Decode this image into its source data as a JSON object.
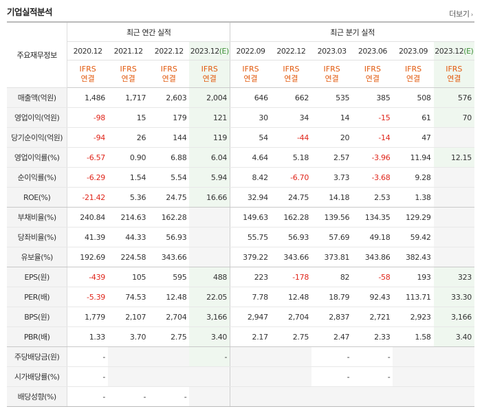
{
  "title": "기업실적분석",
  "more_label": "더보기",
  "header": {
    "row_label": "주요재무정보",
    "annual_group": "최근 연간 실적",
    "quarterly_group": "최근 분기 실적",
    "annual_periods": [
      {
        "label": "2020.12",
        "est": ""
      },
      {
        "label": "2021.12",
        "est": ""
      },
      {
        "label": "2022.12",
        "est": ""
      },
      {
        "label": "2023.12",
        "est": "(E)"
      }
    ],
    "quarterly_periods": [
      {
        "label": "2022.09",
        "est": ""
      },
      {
        "label": "2022.12",
        "est": ""
      },
      {
        "label": "2023.03",
        "est": ""
      },
      {
        "label": "2023.06",
        "est": ""
      },
      {
        "label": "2023.09",
        "est": ""
      },
      {
        "label": "2023.12",
        "est": "(E)"
      }
    ],
    "ifrs_line1": "IFRS",
    "ifrs_line2": "연결"
  },
  "rows": [
    {
      "label": "매출액(억원)",
      "values": [
        "1,486",
        "1,717",
        "2,603",
        "2,004",
        "646",
        "662",
        "535",
        "385",
        "508",
        "576"
      ]
    },
    {
      "label": "영업이익(억원)",
      "values": [
        "-98",
        "15",
        "179",
        "121",
        "30",
        "34",
        "14",
        "-15",
        "61",
        "70"
      ]
    },
    {
      "label": "당기순이익(억원)",
      "values": [
        "-94",
        "26",
        "144",
        "119",
        "54",
        "-44",
        "20",
        "-14",
        "47",
        ""
      ]
    },
    {
      "label": "영업이익률(%)",
      "values": [
        "-6.57",
        "0.90",
        "6.88",
        "6.04",
        "4.64",
        "5.18",
        "2.57",
        "-3.96",
        "11.94",
        "12.15"
      ]
    },
    {
      "label": "순이익률(%)",
      "values": [
        "-6.29",
        "1.54",
        "5.54",
        "5.94",
        "8.42",
        "-6.70",
        "3.73",
        "-3.68",
        "9.28",
        ""
      ]
    },
    {
      "label": "ROE(%)",
      "values": [
        "-21.42",
        "5.36",
        "24.75",
        "16.66",
        "32.94",
        "24.75",
        "14.18",
        "2.53",
        "1.38",
        ""
      ]
    },
    {
      "label": "부채비율(%)",
      "values": [
        "240.84",
        "214.63",
        "162.28",
        "",
        "149.63",
        "162.28",
        "139.56",
        "134.35",
        "129.29",
        ""
      ]
    },
    {
      "label": "당좌비율(%)",
      "values": [
        "41.39",
        "44.33",
        "56.93",
        "",
        "55.75",
        "56.93",
        "57.69",
        "49.18",
        "59.42",
        ""
      ]
    },
    {
      "label": "유보율(%)",
      "values": [
        "192.69",
        "224.58",
        "343.66",
        "",
        "379.22",
        "343.66",
        "373.81",
        "343.86",
        "382.43",
        ""
      ]
    },
    {
      "label": "EPS(원)",
      "values": [
        "-439",
        "105",
        "595",
        "488",
        "223",
        "-178",
        "82",
        "-58",
        "193",
        "323"
      ]
    },
    {
      "label": "PER(배)",
      "values": [
        "-5.39",
        "74.53",
        "12.48",
        "22.05",
        "7.78",
        "12.48",
        "18.79",
        "92.43",
        "113.71",
        "33.30"
      ]
    },
    {
      "label": "BPS(원)",
      "values": [
        "1,779",
        "2,107",
        "2,704",
        "3,166",
        "2,947",
        "2,704",
        "2,837",
        "2,721",
        "2,923",
        "3,166"
      ]
    },
    {
      "label": "PBR(배)",
      "values": [
        "1.33",
        "3.70",
        "2.75",
        "3.40",
        "2.17",
        "2.75",
        "2.47",
        "2.33",
        "1.58",
        "3.40"
      ]
    },
    {
      "label": "주당배당금(원)",
      "values": [
        "-",
        "",
        "",
        "-",
        "",
        "",
        "-",
        "-",
        "",
        ""
      ]
    },
    {
      "label": "시가배당률(%)",
      "values": [
        "-",
        "",
        "",
        "",
        "",
        "",
        "-",
        "-",
        "",
        ""
      ]
    },
    {
      "label": "배당성향(%)",
      "values": [
        "-",
        "-",
        "-",
        "",
        "",
        "",
        "",
        "",
        "",
        ""
      ]
    }
  ],
  "colors": {
    "negative": "#e0261b",
    "ifrs": "#e25a0e",
    "estimate_bg": "#eff7ef",
    "estimate_mark": "#3c8f36"
  }
}
